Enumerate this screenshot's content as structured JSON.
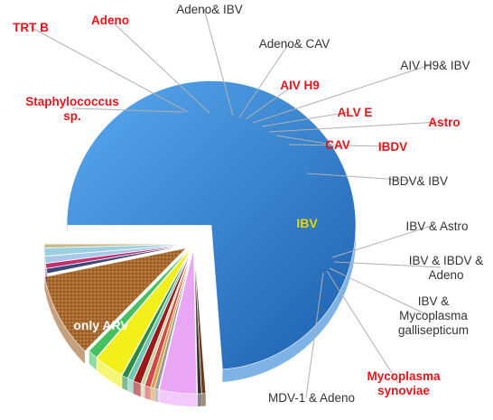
{
  "chart_data": {
    "type": "pie",
    "style": "3d-exploded",
    "categories": [
      "only ARV",
      "Staphylococcus sp.",
      "TRT B",
      "Adeno",
      "Adeno& IBV",
      "Adeno& CAV",
      "AIV H9",
      "AIV H9& IBV",
      "ALV E",
      "Astro",
      "CAV",
      "IBDV",
      "IBDV& IBV",
      "IBV",
      "IBV & Astro",
      "IBV & IBDV & Adeno",
      "IBV & Mycoplasma gallisepticum",
      "Mycoplasma synoviae",
      "MDV-1 & Adeno"
    ],
    "values": [
      67.2,
      0.4,
      0.4,
      3.8,
      0.4,
      0.4,
      0.6,
      0.4,
      0.8,
      0.6,
      0.6,
      3.0,
      1.0,
      8.6,
      0.5,
      0.5,
      0.7,
      0.8,
      0.4
    ],
    "colors": [
      "#2a7fd4",
      "#6d3a1c",
      "#333333",
      "#e8a6f5",
      "#9b9b9b",
      "#d9a24a",
      "#d04848",
      "#c7d6a0",
      "#9a1818",
      "#70c8b2",
      "#2f8a45",
      "#f2ef1a",
      "#48c060",
      "#a0622a",
      "#3b4a7a",
      "#c03070",
      "#a8c8e8",
      "#9bd0e0",
      "#c9bb8a"
    ],
    "label_colors": [
      "#ffffff",
      "#e3151a",
      "#e3151a",
      "#e3151a",
      "#333333",
      "#333333",
      "#e3151a",
      "#333333",
      "#e3151a",
      "#e3151a",
      "#e3151a",
      "#e3151a",
      "#333333",
      "#e8d800",
      "#333333",
      "#333333",
      "#333333",
      "#e3151a",
      "#333333"
    ],
    "labels_display": [
      [
        "only ARV"
      ],
      [
        "Staphylococcus",
        "sp."
      ],
      [
        "TRT B"
      ],
      [
        "Adeno"
      ],
      [
        "Adeno& IBV"
      ],
      [
        "Adeno& CAV"
      ],
      [
        "AIV H9"
      ],
      [
        "AIV H9& IBV"
      ],
      [
        "ALV E"
      ],
      [
        "Astro"
      ],
      [
        "CAV"
      ],
      [
        "IBDV"
      ],
      [
        "IBDV& IBV"
      ],
      [
        "IBV"
      ],
      [
        "IBV & Astro"
      ],
      [
        "IBV & IBDV &",
        "Adeno"
      ],
      [
        "IBV &",
        "Mycoplasma",
        "gallisepticum"
      ],
      [
        "Mycoplasma",
        "synoviae"
      ],
      [
        "MDV-1 & Adeno"
      ]
    ],
    "legend": "none",
    "title": ""
  }
}
